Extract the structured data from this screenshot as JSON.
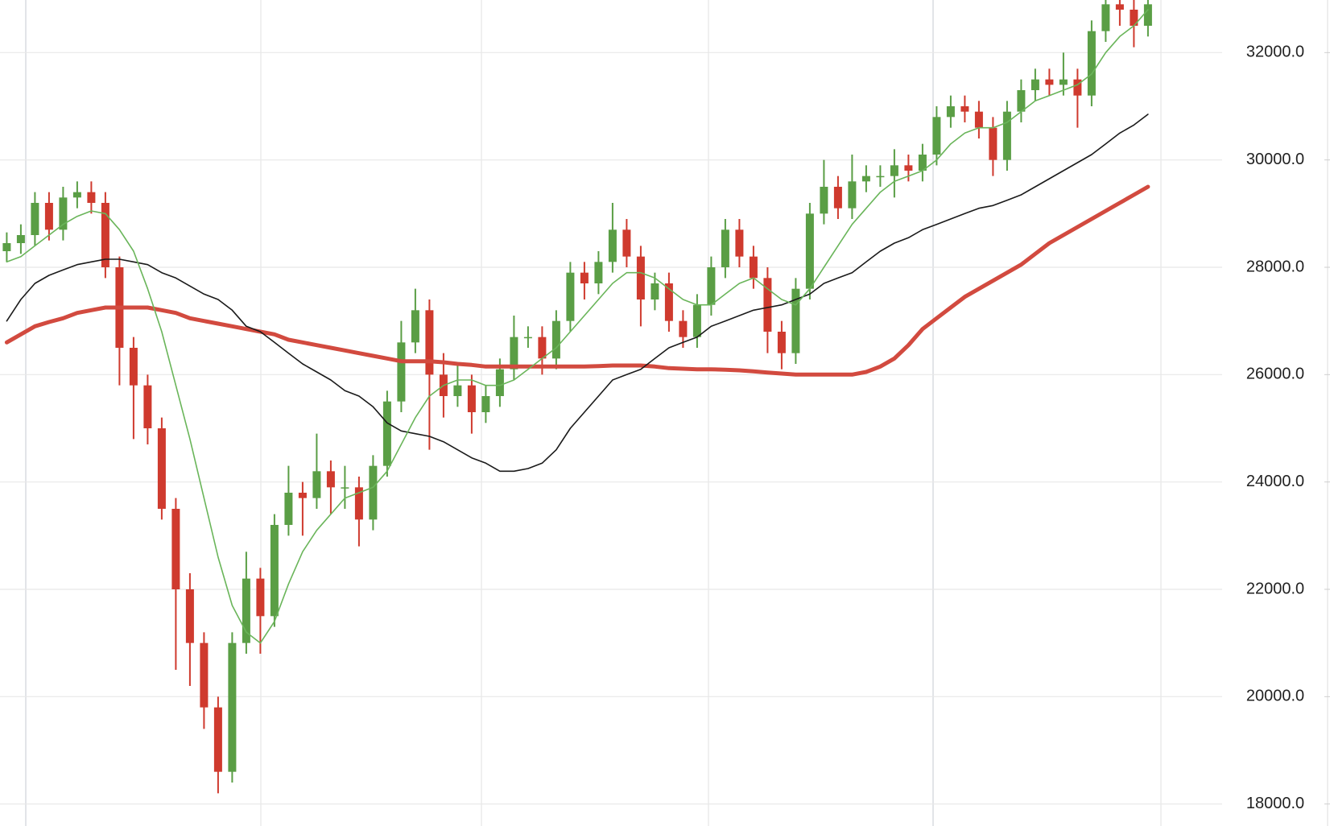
{
  "chart_data": {
    "type": "candlestick",
    "up_color": "#5a9e45",
    "down_color": "#cf3a2e",
    "grid": true,
    "ylim": [
      17590,
      32980
    ],
    "yticks": [
      {
        "value": 18000,
        "label": "18000.0"
      },
      {
        "value": 20000,
        "label": "20000.0"
      },
      {
        "value": 22000,
        "label": "22000.0"
      },
      {
        "value": 24000,
        "label": "24000.0"
      },
      {
        "value": 26000,
        "label": "26000.0"
      },
      {
        "value": 28000,
        "label": "28000.0"
      },
      {
        "value": 30000,
        "label": "30000.0"
      },
      {
        "value": 32000,
        "label": "32000.0"
      }
    ],
    "open": [
      28300,
      28450,
      28600,
      29200,
      28700,
      29300,
      29400,
      29200,
      28000,
      26500,
      25800,
      25000,
      23500,
      22000,
      21000,
      19800,
      18600,
      21000,
      22200,
      21500,
      23200,
      23800,
      23700,
      24200,
      23900,
      23900,
      23300,
      24300,
      25500,
      26600,
      27200,
      26000,
      25600,
      25800,
      25300,
      25600,
      26100,
      26700,
      26700,
      26300,
      27000,
      27900,
      27700,
      28100,
      28700,
      28200,
      27400,
      27700,
      27000,
      26700,
      27300,
      28000,
      28700,
      28200,
      27800,
      26800,
      26400,
      27600,
      29000,
      29500,
      29100,
      29600,
      29700,
      29700,
      29900,
      29800,
      30100,
      30800,
      31000,
      30900,
      30600,
      30000,
      30900,
      31300,
      31500,
      31400,
      31500,
      31200,
      32400,
      32900,
      32800,
      32500
    ],
    "high": [
      28650,
      28800,
      29400,
      29400,
      29500,
      29600,
      29600,
      29400,
      28200,
      26700,
      26000,
      25200,
      23700,
      22300,
      21200,
      20000,
      21200,
      22700,
      22400,
      23400,
      24300,
      24000,
      24900,
      24400,
      24300,
      24100,
      24500,
      25700,
      27000,
      27600,
      27400,
      26400,
      26200,
      26000,
      25800,
      26300,
      27100,
      26900,
      26900,
      27200,
      28100,
      28100,
      28300,
      29200,
      28900,
      28400,
      27900,
      27900,
      27200,
      27500,
      28200,
      28900,
      28900,
      28400,
      28000,
      27000,
      27800,
      29200,
      30000,
      29700,
      30100,
      29900,
      29900,
      30200,
      30100,
      30300,
      31000,
      31200,
      31200,
      31100,
      30800,
      31100,
      31500,
      31700,
      31700,
      32000,
      31700,
      32600,
      33100,
      33100,
      33000,
      33100
    ],
    "low": [
      28100,
      28250,
      28400,
      28500,
      28500,
      29100,
      29000,
      27800,
      25800,
      24800,
      24700,
      23300,
      20500,
      20200,
      19400,
      18200,
      18400,
      20800,
      20800,
      21300,
      23000,
      23000,
      23500,
      23400,
      23500,
      22800,
      23100,
      24100,
      25300,
      26400,
      24600,
      25200,
      25400,
      24900,
      25100,
      25400,
      25900,
      26500,
      26000,
      26100,
      26800,
      27400,
      27500,
      27900,
      28000,
      26900,
      27200,
      26800,
      26500,
      26500,
      27100,
      27800,
      28000,
      27600,
      26400,
      26100,
      26200,
      27400,
      28800,
      28900,
      28900,
      29400,
      29500,
      29300,
      29600,
      29600,
      29900,
      30600,
      30700,
      30400,
      29700,
      29800,
      30700,
      31100,
      31200,
      31200,
      30600,
      31000,
      32200,
      32500,
      32100,
      32300
    ],
    "close": [
      28450,
      28600,
      29200,
      28700,
      29300,
      29400,
      29200,
      28000,
      26500,
      25800,
      25000,
      23500,
      22000,
      21000,
      19800,
      18600,
      21000,
      22200,
      21500,
      23200,
      23800,
      23700,
      24200,
      23900,
      23900,
      23300,
      24300,
      25500,
      26600,
      27200,
      26000,
      25600,
      25800,
      25300,
      25600,
      26100,
      26700,
      26700,
      26300,
      27000,
      27900,
      27700,
      28100,
      28700,
      28200,
      27400,
      27700,
      27000,
      26700,
      27300,
      28000,
      28700,
      28200,
      27800,
      26800,
      26400,
      27600,
      29000,
      29500,
      29100,
      29600,
      29700,
      29700,
      29900,
      29800,
      30100,
      30800,
      31000,
      30900,
      30600,
      30000,
      30900,
      31300,
      31500,
      31400,
      31500,
      31200,
      32400,
      32900,
      32800,
      32500,
      32900
    ],
    "series": [
      {
        "color": "#d24a3f",
        "line_width": 5,
        "values": [
          26600,
          26750,
          26900,
          26980,
          27050,
          27150,
          27200,
          27250,
          27250,
          27250,
          27250,
          27200,
          27150,
          27050,
          27000,
          26950,
          26900,
          26850,
          26800,
          26750,
          26650,
          26600,
          26550,
          26500,
          26450,
          26400,
          26350,
          26300,
          26250,
          26250,
          26250,
          26230,
          26200,
          26180,
          26150,
          26150,
          26150,
          26150,
          26150,
          26150,
          26150,
          26150,
          26160,
          26170,
          26170,
          26170,
          26150,
          26120,
          26110,
          26100,
          26100,
          26090,
          26080,
          26060,
          26040,
          26020,
          26000,
          26000,
          26000,
          26000,
          26000,
          26050,
          26150,
          26300,
          26550,
          26850,
          27050,
          27250,
          27450,
          27600,
          27750,
          27900,
          28050,
          28250,
          28450,
          28600,
          28750,
          28900,
          29050,
          29200,
          29350,
          29500
        ]
      },
      {
        "color": "#1a1a1a",
        "line_width": 1.6,
        "values": [
          27000,
          27400,
          27700,
          27850,
          27950,
          28050,
          28100,
          28150,
          28150,
          28100,
          28050,
          27900,
          27800,
          27650,
          27500,
          27400,
          27200,
          26900,
          26800,
          26600,
          26400,
          26200,
          26050,
          25900,
          25700,
          25600,
          25400,
          25100,
          24950,
          24900,
          24850,
          24750,
          24600,
          24450,
          24350,
          24200,
          24200,
          24250,
          24350,
          24600,
          25000,
          25300,
          25600,
          25900,
          26000,
          26100,
          26300,
          26500,
          26600,
          26700,
          26900,
          27000,
          27100,
          27200,
          27250,
          27300,
          27400,
          27500,
          27700,
          27800,
          27900,
          28100,
          28300,
          28450,
          28550,
          28700,
          28800,
          28900,
          29000,
          29100,
          29150,
          29250,
          29350,
          29500,
          29650,
          29800,
          29950,
          30100,
          30300,
          30500,
          30650,
          30850
        ]
      },
      {
        "color": "#6ab55a",
        "line_width": 1.6,
        "values": [
          28100,
          28200,
          28400,
          28600,
          28800,
          28950,
          29050,
          29000,
          28700,
          28300,
          27600,
          26800,
          25800,
          24800,
          23700,
          22600,
          21700,
          21200,
          21000,
          21400,
          22100,
          22700,
          23100,
          23400,
          23700,
          23800,
          23900,
          24200,
          24700,
          25200,
          25600,
          25800,
          25900,
          25900,
          25800,
          25800,
          25900,
          26100,
          26300,
          26500,
          26800,
          27100,
          27400,
          27700,
          27900,
          27900,
          27800,
          27600,
          27400,
          27300,
          27300,
          27500,
          27700,
          27800,
          27600,
          27400,
          27300,
          27600,
          28000,
          28400,
          28800,
          29100,
          29400,
          29600,
          29700,
          29800,
          30000,
          30300,
          30500,
          30600,
          30600,
          30700,
          30900,
          31100,
          31200,
          31300,
          31400,
          31600,
          32000,
          32300,
          32500,
          32800
        ]
      }
    ]
  }
}
